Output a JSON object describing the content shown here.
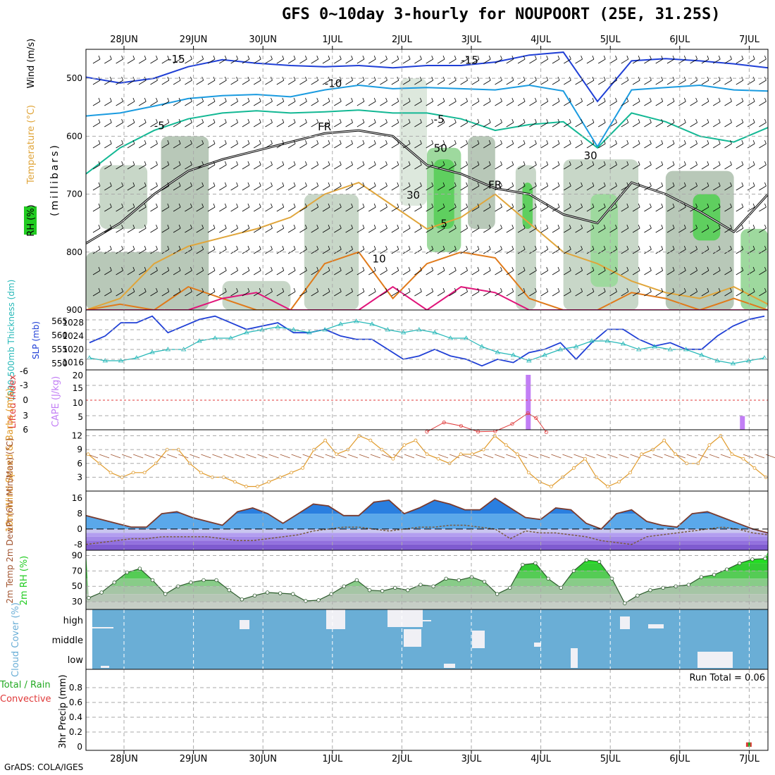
{
  "title": "GFS 0~10day 3-hourly for NOUPOORT (25E, 31.25S)",
  "footer": "GrADS: COLA/IGES",
  "colors": {
    "wind_barb": "#000000",
    "t_min15": "#1f3fd6",
    "t_min10": "#1a9be0",
    "t_min5": "#13b894",
    "t_5": "#e0a53a",
    "t_10": "#e07a1a",
    "t_20": "#e0157a",
    "slp": "#1f3fd6",
    "thickness": "#26b8b8",
    "cape": "#c27ef5",
    "lifted": "#e03a3a",
    "wind10": "#e09a2a",
    "rh2m": "#22cc22",
    "cloud_bg": "#6aaed6",
    "precip_conv": "#e03a3a",
    "precip_total": "#22aa22"
  },
  "chart_data": {
    "time_axis": {
      "labels": [
        "28JUN",
        "29JUN",
        "30JUN",
        "1JUL",
        "2JUL",
        "3JUL",
        "4JUL",
        "5JUL",
        "6JUL",
        "7JUL"
      ]
    },
    "upper_air": {
      "type": "heatmap",
      "ylabel": "(millibars)",
      "yticks": [
        500,
        600,
        700,
        800,
        900
      ],
      "ylim": [
        450,
        900
      ],
      "side_label_rh": "RH (%)",
      "side_label_temp": "Temperature (°C)",
      "side_label_wind": "Wind (m/s)",
      "contour_labels": [
        {
          "text": "-15",
          "t": 1.2,
          "p": 473
        },
        {
          "text": "-15",
          "t": 5.5,
          "p": 475
        },
        {
          "text": "-10",
          "t": 3.5,
          "p": 515
        },
        {
          "text": "-5",
          "t": 1.0,
          "p": 588
        },
        {
          "text": "-5",
          "t": 5.1,
          "p": 577
        },
        {
          "text": "FR",
          "t": 3.4,
          "p": 590
        },
        {
          "text": "FR",
          "t": 5.9,
          "p": 690
        },
        {
          "text": "5",
          "t": 5.2,
          "p": 757
        },
        {
          "text": "10",
          "t": 4.2,
          "p": 818
        },
        {
          "text": "50",
          "t": 5.1,
          "p": 627
        },
        {
          "text": "30",
          "t": 4.7,
          "p": 708
        },
        {
          "text": "30",
          "t": 7.3,
          "p": 640
        }
      ],
      "temp_contours": [
        {
          "level": -15,
          "color": "#1f3fd6",
          "t": [
            0,
            0.5,
            1,
            1.5,
            2,
            2.5,
            3,
            3.5,
            4,
            4.5,
            5,
            5.5,
            6,
            6.5,
            7,
            7.5,
            8,
            8.5,
            9,
            9.5,
            10
          ],
          "p": [
            498,
            508,
            500,
            480,
            468,
            474,
            478,
            480,
            478,
            482,
            478,
            478,
            472,
            460,
            455,
            540,
            470,
            466,
            470,
            475,
            482
          ]
        },
        {
          "level": -10,
          "color": "#1a9be0",
          "t": [
            0,
            0.5,
            1,
            1.5,
            2,
            2.5,
            3,
            3.5,
            4,
            4.5,
            5,
            5.5,
            6,
            6.5,
            7,
            7.5,
            8,
            8.5,
            9,
            9.5,
            10
          ],
          "p": [
            565,
            560,
            548,
            535,
            530,
            528,
            532,
            520,
            512,
            518,
            516,
            518,
            520,
            512,
            522,
            618,
            520,
            516,
            512,
            520,
            522
          ]
        },
        {
          "level": -5,
          "color": "#13b894",
          "t": [
            0,
            0.5,
            1,
            1.5,
            2,
            2.5,
            3,
            3.5,
            4,
            4.5,
            5,
            5.5,
            6,
            6.5,
            7,
            7.5,
            8,
            8.5,
            9,
            9.5,
            10
          ],
          "p": [
            665,
            620,
            590,
            570,
            560,
            556,
            560,
            558,
            555,
            560,
            560,
            570,
            590,
            580,
            575,
            620,
            560,
            575,
            600,
            610,
            585
          ]
        },
        {
          "level": 5,
          "color": "#e0a53a",
          "t": [
            0,
            0.5,
            1,
            1.5,
            2,
            2.5,
            3,
            3.5,
            4,
            4.5,
            5,
            5.5,
            6,
            6.5,
            7,
            7.5,
            8,
            8.5,
            9,
            9.5,
            10
          ],
          "p": [
            900,
            880,
            820,
            790,
            775,
            760,
            740,
            700,
            680,
            720,
            760,
            740,
            700,
            750,
            800,
            820,
            850,
            870,
            880,
            860,
            890
          ]
        },
        {
          "level": 10,
          "color": "#e07a1a",
          "t": [
            0,
            0.5,
            1,
            1.5,
            2,
            2.5,
            3,
            3.5,
            4,
            4.5,
            5,
            5.5,
            6,
            6.5,
            7,
            7.5,
            8,
            8.5,
            9,
            9.5,
            10
          ],
          "p": [
            900,
            890,
            900,
            860,
            880,
            900,
            900,
            820,
            800,
            880,
            820,
            800,
            810,
            880,
            900,
            900,
            870,
            880,
            900,
            880,
            900
          ]
        },
        {
          "level": 20,
          "color": "#e0157a",
          "t": [
            0,
            0.5,
            1,
            1.5,
            2,
            2.5,
            3,
            3.5,
            4,
            4.5,
            5,
            5.5,
            6,
            6.5,
            7,
            7.5,
            8,
            8.5,
            9,
            9.5,
            10
          ],
          "p": [
            900,
            900,
            900,
            900,
            880,
            870,
            900,
            900,
            900,
            860,
            900,
            860,
            870,
            900,
            900,
            900,
            900,
            900,
            900,
            900,
            900
          ]
        },
        {
          "level": 0,
          "color": "#000000",
          "t": [
            0,
            0.5,
            1,
            1.5,
            2,
            2.5,
            3,
            3.5,
            4,
            4.5,
            5,
            5.5,
            6,
            6.5,
            7,
            7.5,
            8,
            8.5,
            9,
            9.5,
            10
          ],
          "p": [
            785,
            750,
            700,
            660,
            640,
            625,
            610,
            595,
            590,
            600,
            650,
            665,
            690,
            700,
            735,
            750,
            680,
            700,
            730,
            765,
            700
          ]
        }
      ],
      "rh_levels": [
        "30",
        "50",
        "70",
        "90"
      ]
    },
    "slp_thickness": {
      "type": "line",
      "ylabel_left": "1000-500mb Thickness (dm)",
      "ylabel_right": "SLP (mb)",
      "left_ticks": [
        550,
        555,
        560,
        565
      ],
      "right_ticks": [
        1016,
        1020,
        1024,
        1028
      ],
      "left_lim": [
        548,
        568
      ],
      "right_lim": [
        1014,
        1031
      ],
      "slp": [
        1022,
        1024,
        1028,
        1028,
        1030,
        1025,
        1027,
        1029,
        1030,
        1028,
        1026,
        1027,
        1028,
        1025,
        1025,
        1026,
        1024,
        1023,
        1023,
        1020,
        1017,
        1018,
        1020,
        1018,
        1017,
        1015,
        1017,
        1016,
        1019,
        1020,
        1022,
        1017,
        1022,
        1026,
        1026,
        1023,
        1021,
        1022,
        1020,
        1020,
        1024,
        1027,
        1029,
        1030
      ],
      "thickness": [
        552,
        551,
        551,
        552,
        554,
        555,
        555,
        558,
        559,
        559,
        561,
        562,
        563,
        562,
        561,
        562,
        564,
        565,
        564,
        562,
        561,
        562,
        561,
        559,
        559,
        556,
        554,
        553,
        551,
        553,
        555,
        556,
        558,
        558,
        557,
        555,
        556,
        555,
        555,
        553,
        551,
        550,
        551,
        552
      ]
    },
    "cape_li": {
      "type": "bar",
      "ylabel_left": "Lifted Index",
      "ylabel_right": "CAPE (J/kg)",
      "left_ticks": [
        "-6",
        "-3",
        "0",
        "3",
        "6"
      ],
      "right_ticks": [
        "20",
        "15",
        "10",
        "5"
      ],
      "cape": [
        {
          "t": 6.48,
          "v": 20
        },
        {
          "t": 9.62,
          "v": 5
        }
      ],
      "li": [
        {
          "t": 5.0,
          "v": 6.4
        },
        {
          "t": 5.25,
          "v": 4.5
        },
        {
          "t": 5.5,
          "v": 5.2
        },
        {
          "t": 5.75,
          "v": 6.4
        },
        {
          "t": 6.0,
          "v": 6.3
        },
        {
          "t": 6.25,
          "v": 4.8
        },
        {
          "t": 6.48,
          "v": 2.6
        },
        {
          "t": 6.6,
          "v": 3.6
        },
        {
          "t": 6.75,
          "v": 6.5
        }
      ]
    },
    "wind10": {
      "type": "line",
      "ylabel": "10m Wind Speed & Barbs (m/s)",
      "yticks": [
        3,
        6,
        9,
        12
      ],
      "ylim": [
        0,
        13
      ],
      "values": [
        8,
        6,
        4,
        3,
        4,
        4,
        6,
        9,
        9,
        6,
        4,
        3,
        3,
        2,
        1,
        1,
        2,
        3,
        4,
        5,
        9,
        11,
        8,
        9,
        12,
        11,
        9,
        7,
        10,
        11,
        8,
        7,
        6,
        8,
        8,
        9,
        12,
        10,
        8,
        4,
        2,
        1,
        3,
        5,
        7,
        3,
        1,
        2,
        4,
        8,
        9,
        11,
        8,
        6,
        6,
        10,
        12,
        8,
        7,
        5,
        3
      ]
    },
    "temp2m": {
      "type": "area",
      "ylabel": "2m Temp 2m DewPt (6hr Min/Max) (°C)",
      "yticks": [
        -8,
        0,
        8,
        16
      ],
      "ylim": [
        -11,
        19
      ],
      "temp": [
        7,
        5,
        3,
        1,
        1,
        8,
        9,
        6,
        4,
        2,
        9,
        11,
        8,
        3,
        8,
        13,
        12,
        7,
        7,
        14,
        15,
        8,
        11,
        15,
        13,
        10,
        10,
        16,
        11,
        6,
        5,
        11,
        10,
        3,
        0,
        8,
        10,
        4,
        2,
        1,
        8,
        9,
        6,
        3,
        0,
        -2
      ],
      "dewpt": [
        -8,
        -7,
        -6,
        -5,
        -5,
        -4,
        -4,
        -4,
        -4,
        -5,
        -6,
        -6,
        -5,
        -4,
        -3,
        -1,
        0,
        1,
        1,
        0,
        -1,
        0,
        1,
        1,
        2,
        2,
        1,
        0,
        -5,
        -1,
        -2,
        -2,
        -3,
        -4,
        -6,
        -7,
        -8,
        -4,
        -3,
        -2,
        -1,
        0,
        1,
        0,
        -2,
        -3
      ]
    },
    "rh2m": {
      "type": "area",
      "ylabel": "2m RH (%)",
      "yticks": [
        30,
        50,
        70,
        90
      ],
      "ylim": [
        20,
        95
      ],
      "values": [
        35,
        42,
        55,
        68,
        73,
        58,
        40,
        50,
        55,
        58,
        58,
        45,
        33,
        38,
        42,
        41,
        40,
        31,
        32,
        40,
        50,
        58,
        45,
        44,
        48,
        45,
        52,
        50,
        60,
        58,
        62,
        56,
        40,
        48,
        78,
        80,
        60,
        48,
        70,
        84,
        82,
        60,
        28,
        38,
        45,
        48,
        50,
        52,
        62,
        65,
        72,
        80,
        85,
        86
      ]
    },
    "cloud": {
      "type": "heatmap",
      "ylabel": "Cloud Cover (%)",
      "levels": [
        "high",
        "middle",
        "low"
      ]
    },
    "precip": {
      "type": "bar",
      "ylabel": "3hr Precip (mm)",
      "side_label_total": "Total / Rain",
      "side_label_conv": "Convective",
      "run_total": "Run Total = 0.06",
      "yticks": [
        "0",
        "0.2",
        "0.4",
        "0.6",
        "0.8"
      ],
      "ylim": [
        0,
        1
      ],
      "bars": [
        {
          "t": 9.72,
          "v": 0.06
        }
      ]
    }
  }
}
